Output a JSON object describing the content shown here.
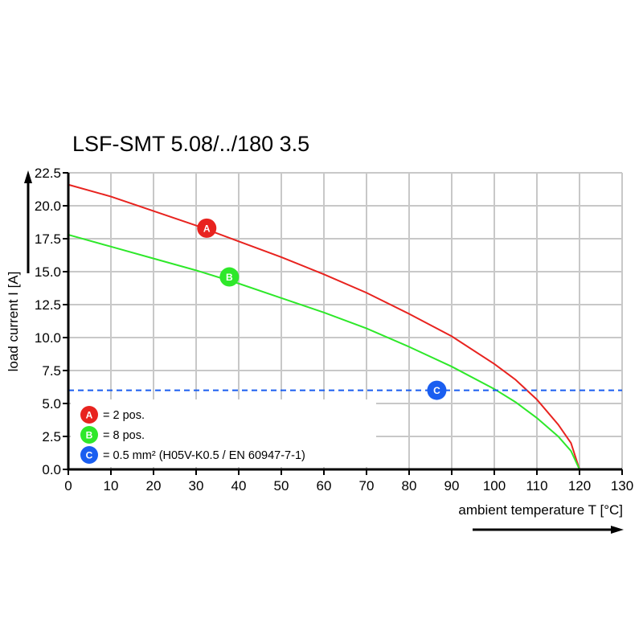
{
  "chart_data": {
    "type": "line",
    "title": "LSF-SMT 5.08/../180 3.5",
    "xlabel": "ambient temperature T [°C]",
    "ylabel": "load current I [A]",
    "xlim": [
      0,
      130
    ],
    "ylim": [
      0,
      22.5
    ],
    "xticks": [
      "0",
      "10",
      "20",
      "30",
      "40",
      "50",
      "60",
      "70",
      "80",
      "90",
      "100",
      "110",
      "120",
      "130"
    ],
    "yticks": [
      "0.0",
      "2.5",
      "5.0",
      "7.5",
      "10.0",
      "12.5",
      "15.0",
      "17.5",
      "20.0",
      "22.5"
    ],
    "grid": true,
    "legend_position": "bottom-left",
    "series": [
      {
        "name": "A",
        "label": "= 2 pos.",
        "color": "#e8231f",
        "style": "solid",
        "marker_at": [
          32.5,
          18.3
        ],
        "points": [
          [
            0,
            21.6
          ],
          [
            10,
            20.7
          ],
          [
            20,
            19.6
          ],
          [
            30,
            18.5
          ],
          [
            40,
            17.3
          ],
          [
            50,
            16.1
          ],
          [
            60,
            14.8
          ],
          [
            70,
            13.4
          ],
          [
            80,
            11.8
          ],
          [
            90,
            10.1
          ],
          [
            100,
            8.0
          ],
          [
            105,
            6.8
          ],
          [
            110,
            5.3
          ],
          [
            115,
            3.4
          ],
          [
            118,
            2.0
          ],
          [
            120,
            0
          ]
        ]
      },
      {
        "name": "B",
        "label": "= 8 pos.",
        "color": "#2ee82a",
        "style": "solid",
        "marker_at": [
          37.8,
          14.6
        ],
        "points": [
          [
            0,
            17.8
          ],
          [
            10,
            16.9
          ],
          [
            20,
            16.0
          ],
          [
            30,
            15.1
          ],
          [
            40,
            14.1
          ],
          [
            50,
            13.0
          ],
          [
            60,
            11.9
          ],
          [
            70,
            10.7
          ],
          [
            80,
            9.3
          ],
          [
            90,
            7.8
          ],
          [
            100,
            6.1
          ],
          [
            105,
            5.1
          ],
          [
            110,
            3.9
          ],
          [
            115,
            2.5
          ],
          [
            118,
            1.4
          ],
          [
            120,
            0
          ]
        ]
      },
      {
        "name": "C",
        "label": "= 0.5 mm² (H05V-K0.5 / EN 60947-7-1)",
        "color": "#1a5ef0",
        "style": "dashed",
        "marker_at": [
          86.5,
          6.0
        ],
        "points": [
          [
            0,
            6.0
          ],
          [
            130,
            6.0
          ]
        ]
      }
    ]
  }
}
